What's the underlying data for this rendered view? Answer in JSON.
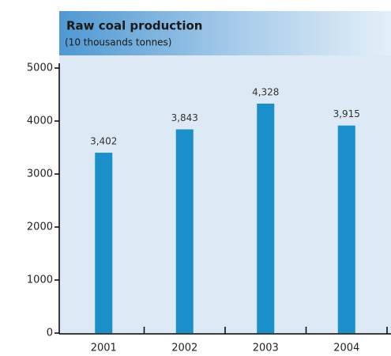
{
  "chart_data": {
    "type": "bar",
    "title": "Raw coal production",
    "subtitle": "(10 thousands tonnes)",
    "categories": [
      "2001",
      "2002",
      "2003",
      "2004"
    ],
    "values": [
      3402,
      3843,
      4328,
      3915
    ],
    "value_labels": [
      "3,402",
      "3,843",
      "4,328",
      "3,915"
    ],
    "color": "#1a8fca",
    "ylim": [
      0,
      5000
    ],
    "yticks": [
      0,
      1000,
      2000,
      3000,
      4000,
      5000
    ]
  }
}
